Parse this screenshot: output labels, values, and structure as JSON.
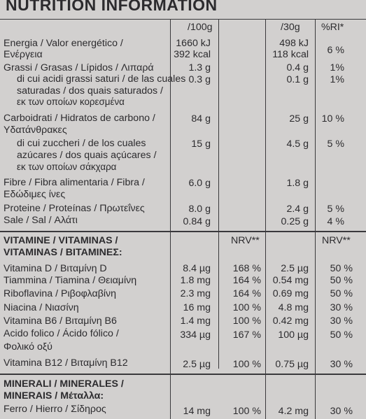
{
  "title": "NUTRITION INFORMATION",
  "headers": {
    "per100": "/100g",
    "per30": "/30g",
    "ri": "%RI*",
    "nrv100": "NRV**",
    "nrv30": "NRV**"
  },
  "nutrients": [
    {
      "l1": "Energia / Valor energético /",
      "v100a": "1660 kJ",
      "v30a": "498 kJ",
      "l2": "Ενέργεια",
      "v100b": "392 kcal",
      "v30b": "118 kcal",
      "ri": "6 %"
    },
    {
      "l1": "Grassi / Grasas / Lípidos / Λιπαρά",
      "v100": "1.3 g",
      "v30": "0.4 g",
      "ri": "1%"
    },
    {
      "l1": "di cui acidi grassi saturi / de las cuales",
      "l2": "saturadas / dos quais saturados /",
      "l3": "εκ των οποίων κορεσμένα",
      "v100": "0.3 g",
      "v30": "0.1 g",
      "ri": "1%"
    },
    {
      "l1": "Carboidrati / Hidratos de carbono /",
      "l2": "Υδατάνθρακες",
      "v100": "84 g",
      "v30": "25 g",
      "ri": "10 %"
    },
    {
      "l1": "di cui zuccheri / de los cuales",
      "l2": "azúcares / dos quais açúcares /",
      "l3": "εκ των οποίων σάκχαρα",
      "v100": "15 g",
      "v30": "4.5 g",
      "ri": "5 %"
    },
    {
      "l1": "Fibre / Fibra alimentaria / Fibra /",
      "l2": "Εδώδιμες ίνες",
      "v100": "6.0 g",
      "v30": "1.8 g",
      "ri": ""
    },
    {
      "l1": "Proteine / Proteínas / Πρωτεΐνες",
      "v100": "8.0 g",
      "v30": "2.4 g",
      "ri": "5 %"
    },
    {
      "l1": "Sale / Sal / Αλάτι",
      "v100": "0.84 g",
      "v30": "0.25 g",
      "ri": "4 %"
    }
  ],
  "vitamins_heading": {
    "l1": "VITAMINE / VITAMINAS /",
    "l2": "VITAMINAS / ΒΙΤΑΜΙΝΕΣ:"
  },
  "vitamins": [
    {
      "name": "Vitamina D / Βιταμίνη D",
      "v100": "8.4 µg",
      "nrv100": "168 %",
      "v30": "2.5 µg",
      "nrv30": "50 %"
    },
    {
      "name": "Tiammina / Tiamina / Θειαμίνη",
      "v100": "1.8 mg",
      "nrv100": "164 %",
      "v30": "0.54 mg",
      "nrv30": "50 %"
    },
    {
      "name": "Riboflavina / Ριβοφλαβίνη",
      "v100": "2.3 mg",
      "nrv100": "164 %",
      "v30": "0.69 mg",
      "nrv30": "50 %"
    },
    {
      "name": "Niacina / Νιασίνη",
      "v100": "16 mg",
      "nrv100": "100 %",
      "v30": "4.8 mg",
      "nrv30": "30 %"
    },
    {
      "name": "Vitamina B6 / Βιταμίνη B6",
      "v100": "1.4 mg",
      "nrv100": "100 %",
      "v30": "0.42 mg",
      "nrv30": "30 %"
    },
    {
      "name": "Acido folico / Ácido fólico /",
      "name2": "Φολικό οξύ",
      "v100": "334 µg",
      "nrv100": "167 %",
      "v30": "100 µg",
      "nrv30": "50 %"
    },
    {
      "name": "Vitamina B12 / Βιταμίνη B12",
      "v100": "2.5 µg",
      "nrv100": "100 %",
      "v30": "0.75 µg",
      "nrv30": "30 %"
    }
  ],
  "minerals_heading": {
    "l1": "MINERALI / MINERALES /",
    "l2": "MINERAIS / Μέταλλα:"
  },
  "minerals": [
    {
      "name": "Ferro / Hierro / Σίδηρος",
      "v100": "14 mg",
      "nrv100": "100 %",
      "v30": "4.2 mg",
      "nrv30": "30 %"
    }
  ]
}
